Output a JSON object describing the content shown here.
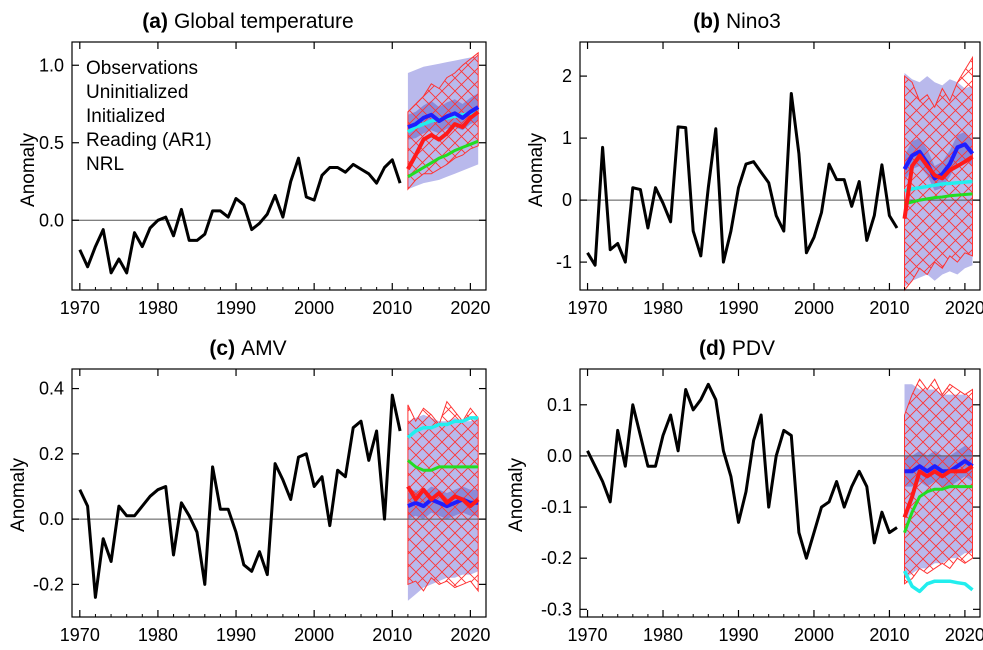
{
  "colors": {
    "observations": "#000000",
    "uninitialized": "#1e1eff",
    "initialized": "#ff1a1a",
    "reading": "#22dd22",
    "nrl": "#22eeee",
    "unin_band": "#b9b9ec",
    "unin_band_dark": "#8a8ad8",
    "init_hatch": "#ff3333"
  },
  "legend": {
    "placement": "top-left",
    "entries": [
      {
        "label": "Observations",
        "color": "#000000"
      },
      {
        "label": "Uninitialized",
        "color": "#1e1eff"
      },
      {
        "label": "Initialized",
        "color": "#ff1a1a"
      },
      {
        "label": "Reading (AR1)",
        "color": "#22dd22"
      },
      {
        "label": "NRL",
        "color": "#22eeee"
      }
    ]
  },
  "chart_data": [
    {
      "id": "a",
      "type": "line",
      "panel_letter": "(a)",
      "title": "Global temperature",
      "ylabel": "Anomaly",
      "xlim": [
        1969,
        2022
      ],
      "ylim": [
        -0.45,
        1.15
      ],
      "xticks": [
        1970,
        1980,
        1990,
        2000,
        2010,
        2020
      ],
      "yticks": [
        -0.0,
        0.5,
        1.0
      ],
      "ytick_labels": [
        "0.0",
        "0.5",
        "1.0"
      ],
      "grid": false,
      "zero_line": true,
      "observations": {
        "x": [
          1970,
          1971,
          1972,
          1973,
          1974,
          1975,
          1976,
          1977,
          1978,
          1979,
          1980,
          1981,
          1982,
          1983,
          1984,
          1985,
          1986,
          1987,
          1988,
          1989,
          1990,
          1991,
          1992,
          1993,
          1994,
          1995,
          1996,
          1997,
          1998,
          1999,
          2000,
          2001,
          2002,
          2003,
          2004,
          2005,
          2006,
          2007,
          2008,
          2009,
          2010,
          2011
        ],
        "y": [
          -0.19,
          -0.3,
          -0.17,
          -0.06,
          -0.34,
          -0.25,
          -0.34,
          -0.08,
          -0.17,
          -0.05,
          0.0,
          0.02,
          -0.1,
          0.07,
          -0.13,
          -0.13,
          -0.09,
          0.06,
          0.06,
          0.02,
          0.14,
          0.1,
          -0.06,
          -0.02,
          0.04,
          0.16,
          0.02,
          0.25,
          0.4,
          0.15,
          0.13,
          0.29,
          0.34,
          0.34,
          0.31,
          0.36,
          0.33,
          0.3,
          0.24,
          0.34,
          0.39,
          0.24
        ]
      },
      "forecast_x": [
        2012,
        2013,
        2014,
        2015,
        2016,
        2017,
        2018,
        2019,
        2020,
        2021
      ],
      "uninitialized": [
        0.6,
        0.62,
        0.66,
        0.68,
        0.64,
        0.67,
        0.69,
        0.66,
        0.7,
        0.73
      ],
      "uninitialized_range": {
        "low": [
          0.2,
          0.22,
          0.24,
          0.25,
          0.26,
          0.28,
          0.3,
          0.32,
          0.34,
          0.36
        ],
        "high": [
          0.95,
          0.97,
          0.99,
          1.0,
          1.01,
          1.02,
          1.03,
          1.04,
          1.05,
          1.06
        ]
      },
      "uninitialized_iqr": {
        "low": [
          0.52,
          0.53,
          0.56,
          0.58,
          0.56,
          0.59,
          0.6,
          0.58,
          0.62,
          0.64
        ],
        "high": [
          0.68,
          0.7,
          0.74,
          0.77,
          0.73,
          0.76,
          0.78,
          0.75,
          0.79,
          0.82
        ]
      },
      "initialized": [
        0.33,
        0.42,
        0.52,
        0.55,
        0.52,
        0.56,
        0.62,
        0.6,
        0.66,
        0.7
      ],
      "initialized_range": {
        "low": [
          0.2,
          0.26,
          0.3,
          0.3,
          0.33,
          0.36,
          0.4,
          0.42,
          0.46,
          0.48
        ],
        "high": [
          0.7,
          0.75,
          0.8,
          0.88,
          0.85,
          0.92,
          0.95,
          1.0,
          1.04,
          1.08
        ]
      },
      "reading": [
        0.28,
        0.31,
        0.34,
        0.37,
        0.4,
        0.42,
        0.45,
        0.47,
        0.49,
        0.51
      ],
      "nrl": [
        0.57,
        0.6,
        0.62,
        0.64,
        0.65,
        0.66,
        0.67,
        0.68,
        0.69,
        0.7
      ]
    },
    {
      "id": "b",
      "type": "line",
      "panel_letter": "(b)",
      "title": "Nino3",
      "ylabel": "Anomaly",
      "xlim": [
        1969,
        2022
      ],
      "ylim": [
        -1.45,
        2.55
      ],
      "xticks": [
        1970,
        1980,
        1990,
        2000,
        2010,
        2020
      ],
      "yticks": [
        -1,
        0,
        1,
        2
      ],
      "ytick_labels": [
        "-1",
        "0",
        "1",
        "2"
      ],
      "grid": false,
      "zero_line": true,
      "observations": {
        "x": [
          1970,
          1971,
          1972,
          1973,
          1974,
          1975,
          1976,
          1977,
          1978,
          1979,
          1980,
          1981,
          1982,
          1983,
          1984,
          1985,
          1986,
          1987,
          1988,
          1989,
          1990,
          1991,
          1992,
          1993,
          1994,
          1995,
          1996,
          1997,
          1998,
          1999,
          2000,
          2001,
          2002,
          2003,
          2004,
          2005,
          2006,
          2007,
          2008,
          2009,
          2010,
          2011
        ],
        "y": [
          -0.85,
          -1.05,
          0.85,
          -0.8,
          -0.7,
          -1.0,
          0.2,
          0.17,
          -0.45,
          0.2,
          -0.05,
          -0.35,
          1.18,
          1.17,
          -0.5,
          -0.9,
          0.2,
          1.15,
          -1.0,
          -0.5,
          0.2,
          0.58,
          0.62,
          0.45,
          0.28,
          -0.25,
          -0.5,
          1.72,
          0.75,
          -0.85,
          -0.6,
          -0.2,
          0.58,
          0.33,
          0.33,
          -0.1,
          0.3,
          -0.65,
          -0.25,
          0.57,
          -0.25,
          -0.45
        ]
      },
      "forecast_x": [
        2012,
        2013,
        2014,
        2015,
        2016,
        2017,
        2018,
        2019,
        2020,
        2021
      ],
      "uninitialized": [
        0.5,
        0.72,
        0.78,
        0.6,
        0.35,
        0.42,
        0.58,
        0.85,
        0.9,
        0.75
      ],
      "uninitialized_range": {
        "low": [
          -1.4,
          -1.3,
          -1.25,
          -1.2,
          -1.3,
          -1.2,
          -1.15,
          -1.2,
          -1.1,
          -1.05
        ],
        "high": [
          2.05,
          1.95,
          1.9,
          2.0,
          1.9,
          1.85,
          1.95,
          1.9,
          1.8,
          1.85
        ]
      },
      "uninitialized_iqr": {
        "low": [
          0.3,
          0.5,
          0.55,
          0.4,
          0.15,
          0.2,
          0.38,
          0.6,
          0.65,
          0.55
        ],
        "high": [
          0.72,
          0.95,
          1.0,
          0.82,
          0.55,
          0.62,
          0.8,
          1.05,
          1.1,
          0.95
        ]
      },
      "initialized": [
        -0.3,
        0.55,
        0.72,
        0.55,
        0.4,
        0.35,
        0.48,
        0.55,
        0.62,
        0.7
      ],
      "initialized_range": {
        "low": [
          -1.45,
          -1.3,
          -1.1,
          -1.2,
          -1.0,
          -1.1,
          -0.9,
          -1.0,
          -0.85,
          -0.9
        ],
        "high": [
          2.0,
          1.9,
          1.6,
          1.7,
          1.5,
          1.8,
          1.6,
          1.9,
          2.1,
          2.3
        ]
      },
      "reading": [
        -0.06,
        -0.03,
        0.0,
        0.02,
        0.04,
        0.05,
        0.07,
        0.08,
        0.09,
        0.1
      ],
      "nrl": [
        0.15,
        0.18,
        0.2,
        0.22,
        0.24,
        0.26,
        0.27,
        0.28,
        0.29,
        0.3
      ]
    },
    {
      "id": "c",
      "type": "line",
      "panel_letter": "(c)",
      "title": "AMV",
      "ylabel": "Anomaly",
      "xlim": [
        1969,
        2022
      ],
      "ylim": [
        -0.3,
        0.46
      ],
      "xticks": [
        1970,
        1980,
        1990,
        2000,
        2010,
        2020
      ],
      "yticks": [
        -0.2,
        0.0,
        0.2,
        0.4
      ],
      "ytick_labels": [
        "-0.2",
        "0.0",
        "0.2",
        "0.4"
      ],
      "grid": false,
      "zero_line": true,
      "observations": {
        "x": [
          1970,
          1971,
          1972,
          1973,
          1974,
          1975,
          1976,
          1977,
          1978,
          1979,
          1980,
          1981,
          1982,
          1983,
          1984,
          1985,
          1986,
          1987,
          1988,
          1989,
          1990,
          1991,
          1992,
          1993,
          1994,
          1995,
          1996,
          1997,
          1998,
          1999,
          2000,
          2001,
          2002,
          2003,
          2004,
          2005,
          2006,
          2007,
          2008,
          2009,
          2010,
          2011
        ],
        "y": [
          0.09,
          0.04,
          -0.24,
          -0.06,
          -0.13,
          0.04,
          0.01,
          0.01,
          0.04,
          0.07,
          0.09,
          0.1,
          -0.11,
          0.05,
          0.01,
          -0.04,
          -0.2,
          0.16,
          0.03,
          0.03,
          -0.04,
          -0.14,
          -0.16,
          -0.1,
          -0.17,
          0.17,
          0.12,
          0.06,
          0.19,
          0.2,
          0.1,
          0.13,
          -0.02,
          0.15,
          0.13,
          0.28,
          0.3,
          0.18,
          0.27,
          0.0,
          0.38,
          0.27
        ]
      },
      "forecast_x": [
        2012,
        2013,
        2014,
        2015,
        2016,
        2017,
        2018,
        2019,
        2020,
        2021
      ],
      "uninitialized": [
        0.04,
        0.05,
        0.04,
        0.06,
        0.05,
        0.04,
        0.05,
        0.06,
        0.05,
        0.05
      ],
      "uninitialized_range": {
        "low": [
          -0.25,
          -0.23,
          -0.21,
          -0.2,
          -0.19,
          -0.18,
          -0.18,
          -0.17,
          -0.17,
          -0.16
        ],
        "high": [
          0.3,
          0.31,
          0.32,
          0.31,
          0.3,
          0.3,
          0.31,
          0.3,
          0.3,
          0.31
        ]
      },
      "uninitialized_iqr": {
        "low": [
          0.0,
          0.01,
          0.0,
          0.02,
          0.01,
          0.0,
          0.01,
          0.02,
          0.01,
          0.01
        ],
        "high": [
          0.08,
          0.09,
          0.08,
          0.1,
          0.09,
          0.08,
          0.09,
          0.1,
          0.09,
          0.09
        ]
      },
      "initialized": [
        0.1,
        0.06,
        0.09,
        0.06,
        0.08,
        0.05,
        0.07,
        0.06,
        0.04,
        0.06
      ],
      "initialized_range": {
        "low": [
          -0.2,
          -0.19,
          -0.22,
          -0.18,
          -0.2,
          -0.19,
          -0.21,
          -0.2,
          -0.19,
          -0.22
        ],
        "high": [
          0.35,
          0.3,
          0.34,
          0.32,
          0.29,
          0.36,
          0.33,
          0.3,
          0.34,
          0.31
        ]
      },
      "reading": [
        0.18,
        0.16,
        0.15,
        0.15,
        0.16,
        0.16,
        0.16,
        0.16,
        0.16,
        0.16
      ],
      "nrl": [
        0.25,
        0.27,
        0.28,
        0.28,
        0.29,
        0.29,
        0.3,
        0.3,
        0.31,
        0.31
      ]
    },
    {
      "id": "d",
      "type": "line",
      "panel_letter": "(d)",
      "title": "PDV",
      "ylabel": "Anomaly",
      "xlim": [
        1969,
        2022
      ],
      "ylim": [
        -0.315,
        0.17
      ],
      "xticks": [
        1970,
        1980,
        1990,
        2000,
        2010,
        2020
      ],
      "yticks": [
        -0.3,
        -0.2,
        -0.1,
        0.0,
        0.1
      ],
      "ytick_labels": [
        "-0.3",
        "-0.2",
        "-0.1",
        "0.0",
        "0.1"
      ],
      "grid": false,
      "zero_line": true,
      "observations": {
        "x": [
          1970,
          1971,
          1972,
          1973,
          1974,
          1975,
          1976,
          1977,
          1978,
          1979,
          1980,
          1981,
          1982,
          1983,
          1984,
          1985,
          1986,
          1987,
          1988,
          1989,
          1990,
          1991,
          1992,
          1993,
          1994,
          1995,
          1996,
          1997,
          1998,
          1999,
          2000,
          2001,
          2002,
          2003,
          2004,
          2005,
          2006,
          2007,
          2008,
          2009,
          2010,
          2011
        ],
        "y": [
          0.01,
          -0.02,
          -0.05,
          -0.09,
          0.05,
          -0.02,
          0.1,
          0.04,
          -0.02,
          -0.02,
          0.04,
          0.08,
          0.01,
          0.13,
          0.09,
          0.11,
          0.14,
          0.11,
          0.01,
          -0.04,
          -0.13,
          -0.07,
          0.03,
          0.08,
          -0.1,
          0.0,
          0.05,
          0.04,
          -0.15,
          -0.2,
          -0.15,
          -0.1,
          -0.09,
          -0.05,
          -0.1,
          -0.06,
          -0.03,
          -0.06,
          -0.17,
          -0.11,
          -0.15,
          -0.14
        ]
      },
      "forecast_x": [
        2012,
        2013,
        2014,
        2015,
        2016,
        2017,
        2018,
        2019,
        2020,
        2021
      ],
      "uninitialized": [
        -0.03,
        -0.03,
        -0.02,
        -0.03,
        -0.02,
        -0.03,
        -0.03,
        -0.02,
        -0.01,
        -0.02
      ],
      "uninitialized_range": {
        "low": [
          -0.24,
          -0.23,
          -0.22,
          -0.22,
          -0.21,
          -0.21,
          -0.2,
          -0.2,
          -0.19,
          -0.19
        ],
        "high": [
          0.14,
          0.14,
          0.13,
          0.13,
          0.13,
          0.12,
          0.12,
          0.12,
          0.12,
          0.11
        ]
      },
      "uninitialized_iqr": {
        "low": [
          -0.06,
          -0.06,
          -0.05,
          -0.06,
          -0.05,
          -0.06,
          -0.06,
          -0.05,
          -0.04,
          -0.05
        ],
        "high": [
          0.0,
          0.0,
          0.01,
          0.0,
          0.01,
          0.0,
          0.0,
          0.01,
          0.02,
          0.01
        ]
      },
      "initialized": [
        -0.12,
        -0.08,
        -0.03,
        -0.04,
        -0.03,
        -0.04,
        -0.03,
        -0.03,
        -0.03,
        -0.02
      ],
      "initialized_range": {
        "low": [
          -0.25,
          -0.24,
          -0.22,
          -0.23,
          -0.22,
          -0.21,
          -0.22,
          -0.2,
          -0.21,
          -0.2
        ],
        "high": [
          0.08,
          0.12,
          0.15,
          0.13,
          0.15,
          0.12,
          0.14,
          0.13,
          0.12,
          0.13
        ]
      },
      "reading": [
        -0.15,
        -0.11,
        -0.08,
        -0.07,
        -0.065,
        -0.065,
        -0.06,
        -0.06,
        -0.06,
        -0.06
      ],
      "nrl": [
        -0.225,
        -0.255,
        -0.265,
        -0.25,
        -0.245,
        -0.245,
        -0.245,
        -0.248,
        -0.25,
        -0.262
      ]
    }
  ]
}
